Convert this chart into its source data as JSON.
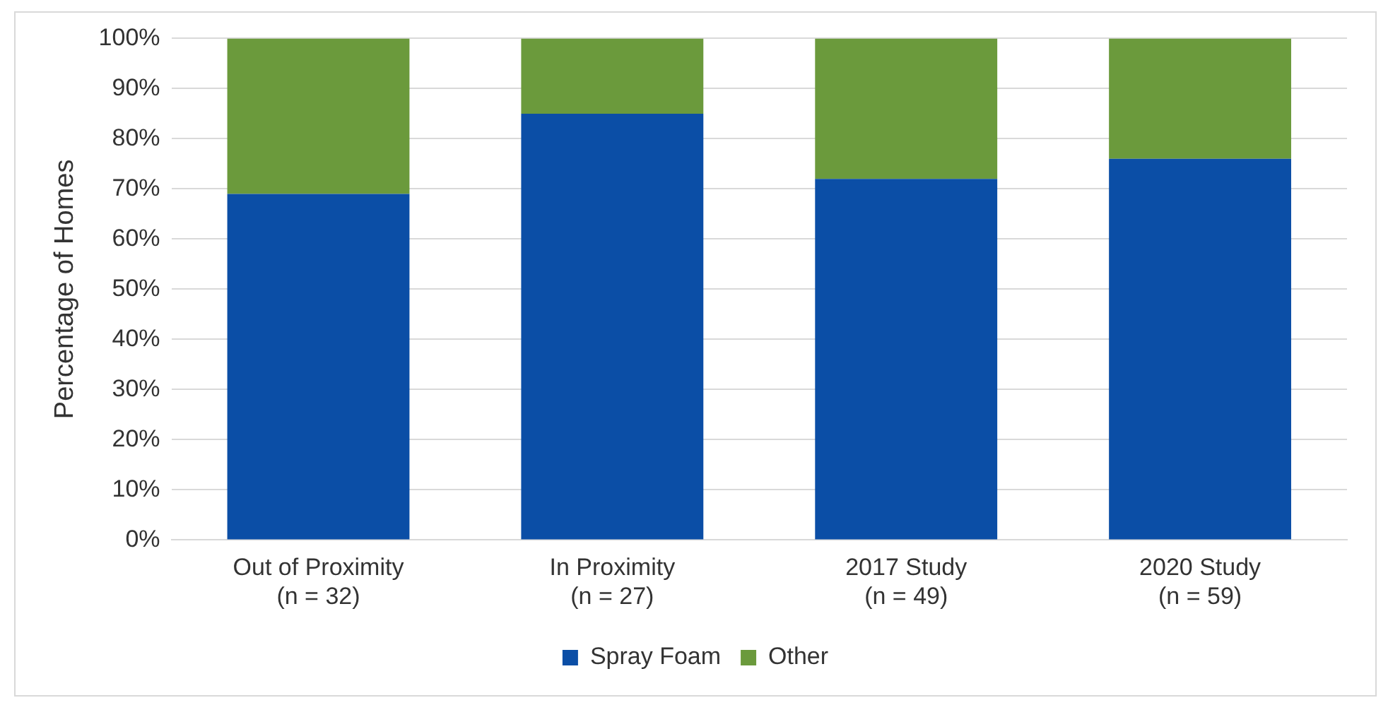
{
  "chart_data": {
    "type": "bar",
    "stacked": true,
    "ylabel": "Percentage of Homes",
    "categories": [
      "Out of Proximity\n(n = 32)",
      "In Proximity\n(n = 27)",
      "2017 Study\n(n = 49)",
      "2020 Study\n(n = 59)"
    ],
    "series": [
      {
        "name": "Spray Foam",
        "color": "#0b4ea6",
        "values": [
          69,
          85,
          72,
          76
        ]
      },
      {
        "name": "Other",
        "color": "#6b9a3c",
        "values": [
          31,
          15,
          28,
          24
        ]
      }
    ],
    "ylim": [
      0,
      100
    ],
    "yticks": [
      {
        "value": 0,
        "label": "0%"
      },
      {
        "value": 10,
        "label": "10%"
      },
      {
        "value": 20,
        "label": "20%"
      },
      {
        "value": 30,
        "label": "30%"
      },
      {
        "value": 40,
        "label": "40%"
      },
      {
        "value": 50,
        "label": "50%"
      },
      {
        "value": 60,
        "label": "60%"
      },
      {
        "value": 70,
        "label": "70%"
      },
      {
        "value": 80,
        "label": "80%"
      },
      {
        "value": 90,
        "label": "90%"
      },
      {
        "value": 100,
        "label": "100%"
      }
    ],
    "grid": "y",
    "legend": "bottom"
  }
}
